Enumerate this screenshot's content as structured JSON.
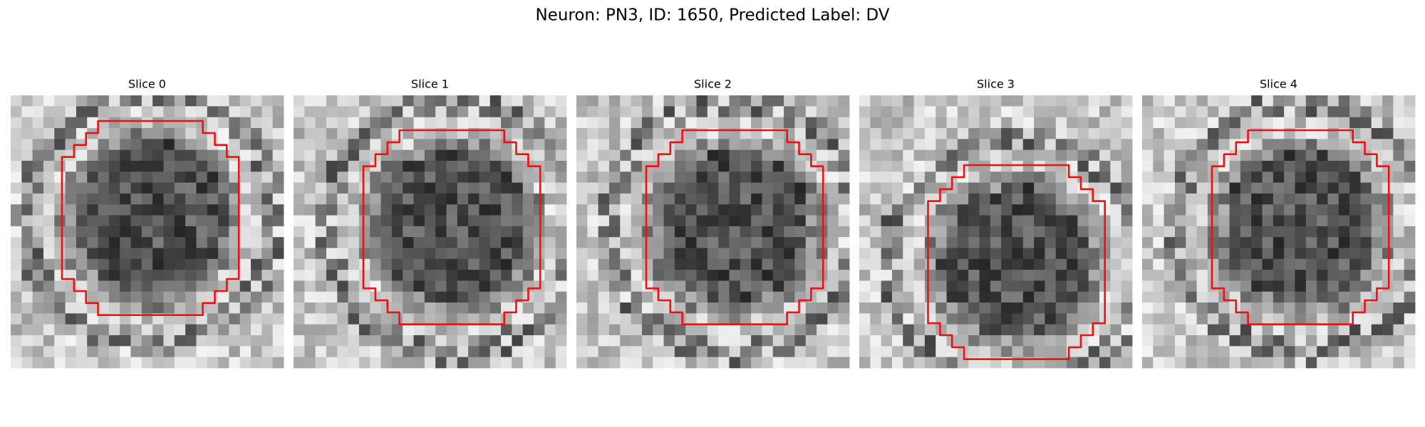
{
  "title": "Neuron: PN3, ID: 1650, Predicted Label: DV",
  "panels": [
    {
      "title": "Slice 0"
    },
    {
      "title": "Slice 1"
    },
    {
      "title": "Slice 2"
    },
    {
      "title": "Slice 3"
    },
    {
      "title": "Slice 4"
    }
  ]
}
